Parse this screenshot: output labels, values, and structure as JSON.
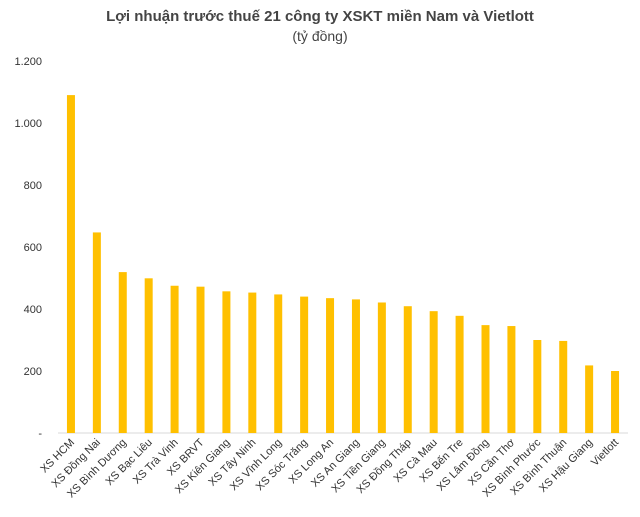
{
  "chart_data": {
    "type": "bar",
    "title": "Lợi nhuận trước thuế 21 công ty XSKT miền Nam và Vietlott",
    "subtitle": "(tỷ đồng)",
    "categories": [
      "XS HCM",
      "XS Đồng Nai",
      "XS Bình Dương",
      "XS Bạc Liêu",
      "XS Trà Vinh",
      "XS BRVT",
      "XS Kiên Giang",
      "XS Tây Ninh",
      "XS Vĩnh Long",
      "XS Sóc Trăng",
      "XS Long An",
      "XS An Giang",
      "XS Tiền Giang",
      "XS Đồng Tháp",
      "XS Cà Mau",
      "XS Bến Tre",
      "XS Lâm Đồng",
      "XS Cần Thơ",
      "XS Bình Phước",
      "XS Bình Thuận",
      "XS Hậu Giang",
      "Vietlott"
    ],
    "values": [
      1090,
      647,
      519,
      499,
      475,
      472,
      457,
      453,
      447,
      440,
      435,
      431,
      421,
      409,
      393,
      378,
      348,
      345,
      300,
      297,
      218,
      200
    ],
    "y_ticks": [
      "-",
      "200",
      "400",
      "600",
      "800",
      "1.000",
      "1.200"
    ],
    "ylim": [
      0,
      1200
    ],
    "grid": false,
    "legend": "none",
    "bar_color": "#FFC000",
    "axis_color": "#d9d9d9"
  }
}
